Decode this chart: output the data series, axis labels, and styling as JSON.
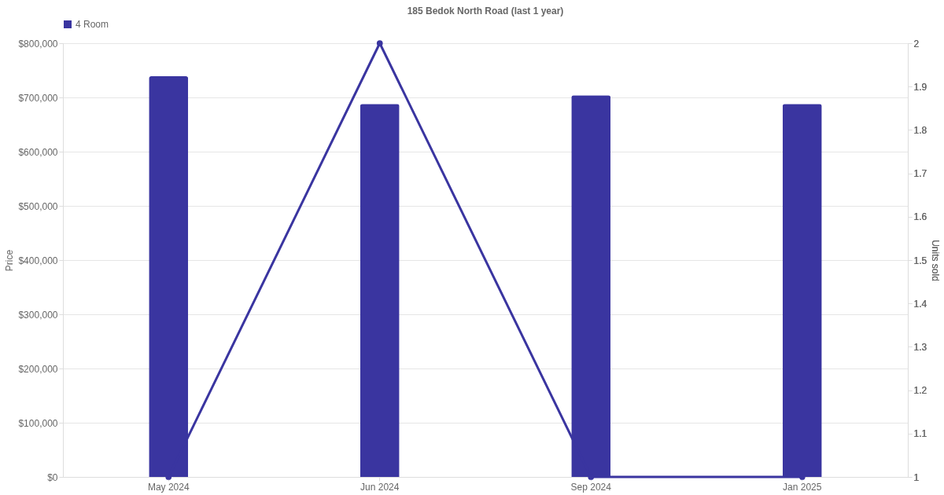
{
  "chart_data": {
    "type": "bar",
    "title": "185 Bedok North Road (last 1 year)",
    "ylabel": "Price",
    "y2label": "Units sold",
    "categories": [
      "May 2024",
      "Jun 2024",
      "Sep 2024",
      "Jan 2025"
    ],
    "series": [
      {
        "name": "4 Room",
        "color": "#3a35a0",
        "values": [
          739000,
          688000,
          704000,
          688000
        ]
      },
      {
        "type": "line",
        "axis": "y2",
        "color": "#3a35a0",
        "values": [
          1,
          2,
          1,
          1
        ]
      }
    ],
    "ylim": [
      0,
      800000
    ],
    "yticks": [
      {
        "value": 0,
        "label": "$0"
      },
      {
        "value": 100000,
        "label": "$100,000"
      },
      {
        "value": 200000,
        "label": "$200,000"
      },
      {
        "value": 300000,
        "label": "$300,000"
      },
      {
        "value": 400000,
        "label": "$400,000"
      },
      {
        "value": 500000,
        "label": "$500,000"
      },
      {
        "value": 600000,
        "label": "$600,000"
      },
      {
        "value": 700000,
        "label": "$700,000"
      },
      {
        "value": 800000,
        "label": "$800,000"
      }
    ],
    "y2lim": [
      1,
      2
    ],
    "y2ticks": [
      1,
      1.1,
      1.2,
      1.3,
      1.4,
      1.5,
      1.6,
      1.7,
      1.8,
      1.9,
      2
    ],
    "grid": "y",
    "legend": "top",
    "marker": "circle"
  }
}
